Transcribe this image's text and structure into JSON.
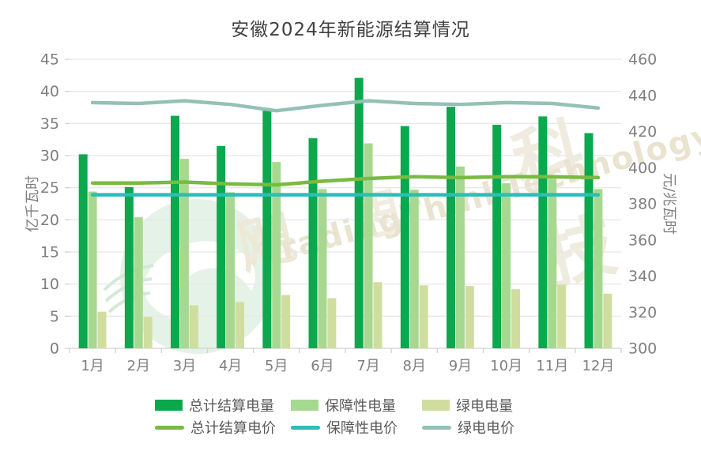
{
  "title": "安徽2024年新能源结算情况",
  "watermark": {
    "cn_chars": [
      "飓",
      "思",
      "科",
      "技"
    ],
    "en": "TradingThinkTechnology"
  },
  "chart_data": {
    "type": "bar+line combo",
    "title": "安徽2024年新能源结算情况",
    "categories": [
      "1月",
      "2月",
      "3月",
      "4月",
      "5月",
      "6月",
      "7月",
      "8月",
      "9月",
      "10月",
      "11月",
      "12月"
    ],
    "left_axis": {
      "title": "亿千瓦时",
      "min": 0,
      "max": 45,
      "step": 5,
      "ticks": [
        "45",
        "40",
        "35",
        "30",
        "25",
        "20",
        "15",
        "10",
        "5",
        "0"
      ]
    },
    "right_axis": {
      "title": "元/兆瓦时",
      "min": 300,
      "max": 460,
      "step": 20,
      "ticks": [
        "460",
        "440",
        "420",
        "400",
        "380",
        "360",
        "340",
        "320",
        "300"
      ]
    },
    "grid": "horizontal",
    "legend_position": "bottom",
    "bar_series": [
      {
        "name": "总计结算电量",
        "color": "#0ba84e",
        "axis": "left",
        "values": [
          30.2,
          25.1,
          36.2,
          31.5,
          37.0,
          32.7,
          42.1,
          34.6,
          37.6,
          34.8,
          36.1,
          33.5
        ]
      },
      {
        "name": "保障性电量",
        "color": "#a7d88f",
        "axis": "left",
        "values": [
          24.4,
          20.4,
          29.5,
          24.3,
          29.0,
          24.8,
          31.9,
          24.7,
          28.3,
          25.7,
          26.4,
          24.8
        ]
      },
      {
        "name": "绿电电量",
        "color": "#cfde9f",
        "axis": "left",
        "values": [
          5.7,
          4.9,
          6.7,
          7.2,
          8.3,
          7.8,
          10.3,
          9.8,
          9.7,
          9.2,
          9.9,
          8.5
        ]
      }
    ],
    "line_series": [
      {
        "name": "总计结算电价",
        "color": "#79ba41",
        "axis": "right",
        "values": [
          391.5,
          391.5,
          392,
          391,
          390.5,
          392.5,
          394,
          395,
          394.5,
          395,
          395,
          394.5
        ]
      },
      {
        "name": "保障性电价",
        "color": "#2bbeb8",
        "axis": "right",
        "values": [
          385,
          385,
          385,
          385,
          385,
          385,
          385,
          385,
          385,
          385,
          385,
          385
        ]
      },
      {
        "name": "绿电电价",
        "color": "#94c1b5",
        "axis": "right",
        "values": [
          436,
          435.5,
          437,
          435,
          431.5,
          434.5,
          437,
          435.5,
          435,
          436,
          435.5,
          433
        ]
      }
    ]
  },
  "style_colors": {
    "gridline": "#e8e8e8",
    "axis_line": "#d2d2d2",
    "tick_label": "#7f7f7f",
    "title_text": "#404040",
    "legend_text": "#595959"
  }
}
